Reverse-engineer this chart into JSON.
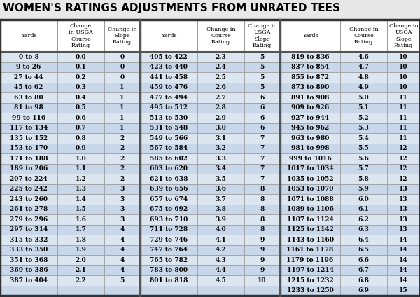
{
  "title": "WOMEN'S RATINGS ADJUSTMENTS FROM UNRATED TEES",
  "col1_headers": [
    "Yards",
    "Change\nin USGA\nCourse\nRating",
    "Change in\nSlope\nRating"
  ],
  "col2_headers": [
    "Yards",
    "Change in\nCourse\nRating",
    "Change in\nUSGA\nSlope\nRating"
  ],
  "col3_headers": [
    "Yards",
    "Change in\nCourse\nRating",
    "Change in\nUSGA\nSlope\nRating"
  ],
  "col1_data": [
    [
      "0 to 8",
      "0.0",
      "0"
    ],
    [
      "9 to 26",
      "0.1",
      "0"
    ],
    [
      "27 to 44",
      "0.2",
      "0"
    ],
    [
      "45 to 62",
      "0.3",
      "1"
    ],
    [
      "63 to 80",
      "0.4",
      "1"
    ],
    [
      "81 to 98",
      "0.5",
      "1"
    ],
    [
      "99 to 116",
      "0.6",
      "1"
    ],
    [
      "117 to 134",
      "0.7",
      "1"
    ],
    [
      "135 to 152",
      "0.8",
      "2"
    ],
    [
      "153 to 170",
      "0.9",
      "2"
    ],
    [
      "171 to 188",
      "1.0",
      "2"
    ],
    [
      "189 to 206",
      "1.1",
      "2"
    ],
    [
      "207 to 224",
      "1.2",
      "2"
    ],
    [
      "225 to 242",
      "1.3",
      "3"
    ],
    [
      "243 to 260",
      "1.4",
      "3"
    ],
    [
      "261 to 278",
      "1.5",
      "3"
    ],
    [
      "279 to 296",
      "1.6",
      "3"
    ],
    [
      "297 to 314",
      "1.7",
      "4"
    ],
    [
      "315 to 332",
      "1.8",
      "4"
    ],
    [
      "333 to 350",
      "1.9",
      "4"
    ],
    [
      "351 to 368",
      "2.0",
      "4"
    ],
    [
      "369 to 386",
      "2.1",
      "4"
    ],
    [
      "387 to 404",
      "2.2",
      "5"
    ]
  ],
  "col2_data": [
    [
      "405 to 422",
      "2.3",
      "5"
    ],
    [
      "423 to 440",
      "2.4",
      "5"
    ],
    [
      "441 to 458",
      "2.5",
      "5"
    ],
    [
      "459 to 476",
      "2.6",
      "5"
    ],
    [
      "477 to 494",
      "2.7",
      "6"
    ],
    [
      "495 to 512",
      "2.8",
      "6"
    ],
    [
      "513 to 530",
      "2.9",
      "6"
    ],
    [
      "531 to 548",
      "3.0",
      "6"
    ],
    [
      "549 to 566",
      "3.1",
      "7"
    ],
    [
      "567 to 584",
      "3.2",
      "7"
    ],
    [
      "585 to 602",
      "3.3",
      "7"
    ],
    [
      "603 to 620",
      "3.4",
      "7"
    ],
    [
      "621 to 638",
      "3.5",
      "7"
    ],
    [
      "639 to 656",
      "3.6",
      "8"
    ],
    [
      "657 to 674",
      "3.7",
      "8"
    ],
    [
      "675 to 692",
      "3.8",
      "8"
    ],
    [
      "693 to 710",
      "3.9",
      "8"
    ],
    [
      "711 to 728",
      "4.0",
      "8"
    ],
    [
      "729 to 746",
      "4.1",
      "9"
    ],
    [
      "747 to 764",
      "4.2",
      "9"
    ],
    [
      "765 to 782",
      "4.3",
      "9"
    ],
    [
      "783 to 800",
      "4.4",
      "9"
    ],
    [
      "801 to 818",
      "4.5",
      "10"
    ]
  ],
  "col3_data": [
    [
      "819 to 836",
      "4.6",
      "10"
    ],
    [
      "837 to 854",
      "4.7",
      "10"
    ],
    [
      "855 to 872",
      "4.8",
      "10"
    ],
    [
      "873 to 890",
      "4.9",
      "10"
    ],
    [
      "891 to 908",
      "5.0",
      "11"
    ],
    [
      "909 to 926",
      "5.1",
      "11"
    ],
    [
      "927 to 944",
      "5.2",
      "11"
    ],
    [
      "945 to 962",
      "5.3",
      "11"
    ],
    [
      "963 to 980",
      "5.4",
      "11"
    ],
    [
      "981 to 998",
      "5.5",
      "12"
    ],
    [
      "999 to 1016",
      "5.6",
      "12"
    ],
    [
      "1017 to 1034",
      "5.7",
      "12"
    ],
    [
      "1035 to 1052",
      "5.8",
      "12"
    ],
    [
      "1053 to 1070",
      "5.9",
      "13"
    ],
    [
      "1071 to 1088",
      "6.0",
      "13"
    ],
    [
      "1089 to 1106",
      "6.1",
      "13"
    ],
    [
      "1107 to 1124",
      "6.2",
      "13"
    ],
    [
      "1125 to 1142",
      "6.3",
      "13"
    ],
    [
      "1143 to 1160",
      "6.4",
      "14"
    ],
    [
      "1161 to 1178",
      "6.5",
      "14"
    ],
    [
      "1179 to 1196",
      "6.6",
      "14"
    ],
    [
      "1197 to 1214",
      "6.7",
      "14"
    ],
    [
      "1215 to 1232",
      "6.8",
      "14"
    ],
    [
      "1233 to 1250",
      "6.9",
      "15"
    ]
  ],
  "row_light": "#dce6f1",
  "row_dark": "#c8d8ea",
  "header_bg": "#ffffff",
  "border_color": "#999999",
  "thick_border": "#555555",
  "bg_color": "#e8e8e8",
  "title_color": "#000000",
  "title_fontsize": 11,
  "header_fontsize": 5.8,
  "data_fontsize": 6.5
}
